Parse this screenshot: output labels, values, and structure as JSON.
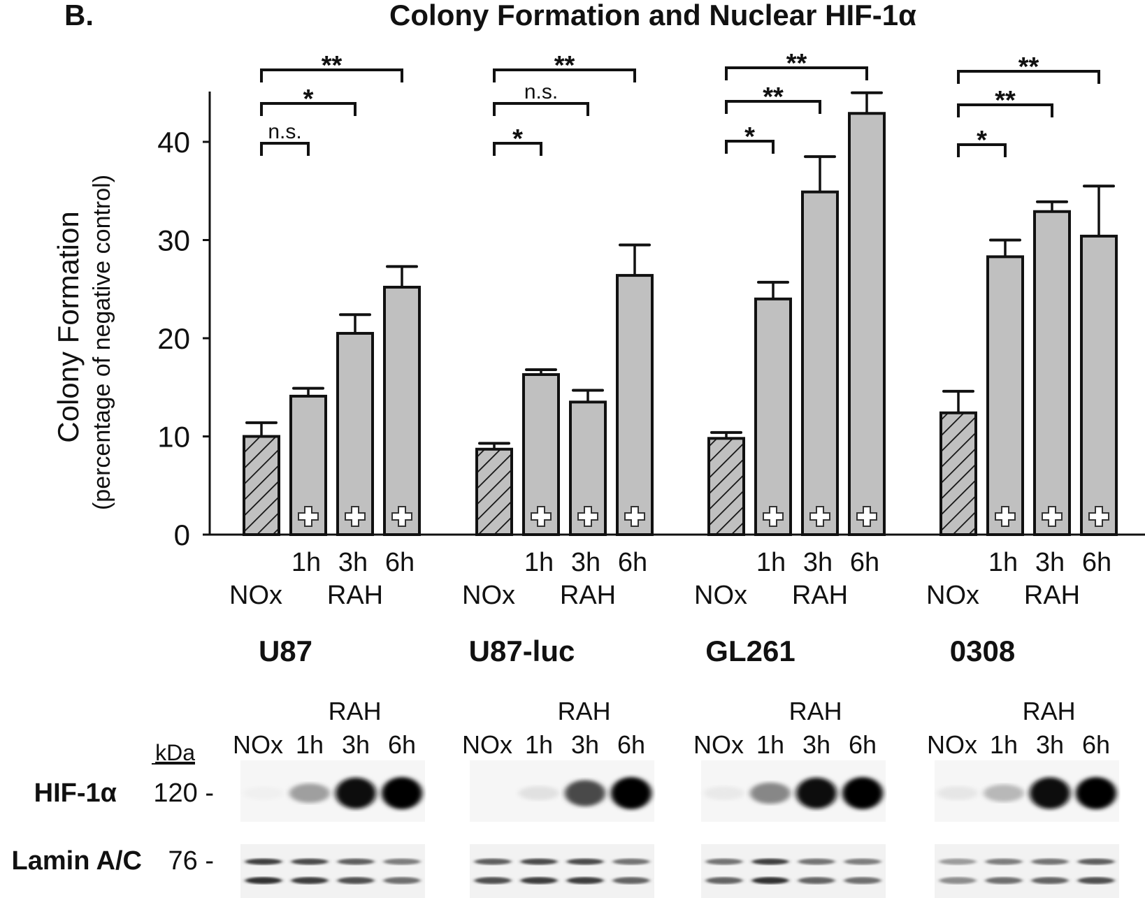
{
  "figure": {
    "panel_label": "B.",
    "title": "Colony Formation and Nuclear HIF-1α"
  },
  "colors": {
    "bar_fill": "#c0c0c0",
    "stroke": "#111111",
    "background": "#ffffff"
  },
  "chart_data": {
    "type": "bar",
    "title": "Colony Formation and Nuclear HIF-1α",
    "xlabel": "",
    "ylabel": "Colony Formation",
    "ylabel_sub": "(percentage of negative control)",
    "ylim": [
      0,
      45
    ],
    "yticks": [
      0,
      10,
      20,
      30,
      40
    ],
    "grid": false,
    "legend": "none",
    "bar_labels": [
      "NOx",
      "1h",
      "3h",
      "6h"
    ],
    "group_sub_labels": {
      "time_row": [
        "1h",
        "3h",
        "6h"
      ],
      "treatment_row": [
        "NOx",
        "RAH"
      ]
    },
    "bar_markers": {
      "NOx": "hatched",
      "RAH": "plus-symbol"
    },
    "groups": [
      {
        "name": "U87",
        "values": [
          10.0,
          14.1,
          20.5,
          25.2
        ],
        "error_upper": [
          11.4,
          14.9,
          22.4,
          27.3
        ],
        "significance": [
          {
            "from": 0,
            "to": 1,
            "label": "n.s."
          },
          {
            "from": 0,
            "to": 2,
            "label": "*"
          },
          {
            "from": 0,
            "to": 3,
            "label": "**"
          }
        ]
      },
      {
        "name": "U87-luc",
        "values": [
          8.7,
          16.3,
          13.5,
          26.4
        ],
        "error_upper": [
          9.3,
          16.8,
          14.7,
          29.5
        ],
        "significance": [
          {
            "from": 0,
            "to": 1,
            "label": "*"
          },
          {
            "from": 0,
            "to": 2,
            "label": "n.s."
          },
          {
            "from": 0,
            "to": 3,
            "label": "**"
          }
        ]
      },
      {
        "name": "GL261",
        "values": [
          9.8,
          24.0,
          34.9,
          42.9
        ],
        "error_upper": [
          10.4,
          25.7,
          38.5,
          45.0
        ],
        "significance": [
          {
            "from": 0,
            "to": 1,
            "label": "*"
          },
          {
            "from": 0,
            "to": 2,
            "label": "**"
          },
          {
            "from": 0,
            "to": 3,
            "label": "**"
          }
        ]
      },
      {
        "name": "0308",
        "values": [
          12.4,
          28.3,
          32.9,
          30.4
        ],
        "error_upper": [
          14.6,
          30.0,
          33.9,
          35.5
        ],
        "significance": [
          {
            "from": 0,
            "to": 1,
            "label": "*"
          },
          {
            "from": 0,
            "to": 2,
            "label": "**"
          },
          {
            "from": 0,
            "to": 3,
            "label": "**"
          }
        ]
      }
    ]
  },
  "western_blot": {
    "kda_label": "kDa",
    "treatment_label": "RAH",
    "lane_labels": [
      "NOx",
      "1h",
      "3h",
      "6h"
    ],
    "rows": [
      {
        "protein": "HIF-1α",
        "kda": "120 -",
        "intensities": [
          [
            0.02,
            0.35,
            0.95,
            1.0
          ],
          [
            0.0,
            0.08,
            0.7,
            1.0
          ],
          [
            0.05,
            0.45,
            0.95,
            1.0
          ],
          [
            0.06,
            0.25,
            0.97,
            1.0
          ]
        ]
      },
      {
        "protein": "Lamin A/C",
        "kda": "76 -",
        "intensities": [
          [
            0.85,
            0.8,
            0.7,
            0.55
          ],
          [
            0.7,
            0.8,
            0.8,
            0.6
          ],
          [
            0.6,
            0.85,
            0.6,
            0.55
          ],
          [
            0.4,
            0.55,
            0.6,
            0.7
          ]
        ]
      }
    ],
    "groups": [
      "U87",
      "U87-luc",
      "GL261",
      "0308"
    ]
  }
}
